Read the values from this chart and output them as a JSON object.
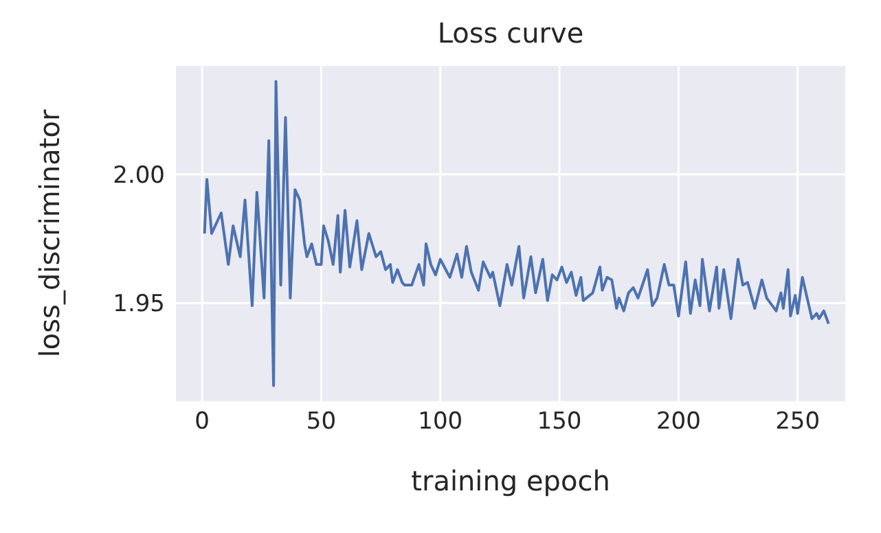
{
  "chart_data": {
    "type": "line",
    "title": "Loss curve",
    "xlabel": "training epoch",
    "ylabel": "loss_discriminator",
    "xlim": [
      -11,
      270
    ],
    "ylim": [
      1.912,
      2.042
    ],
    "xticks": [
      0,
      50,
      100,
      150,
      200,
      250
    ],
    "yticks": [
      {
        "value": 1.95,
        "label": "1.95"
      },
      {
        "value": 2.0,
        "label": "2.00"
      }
    ],
    "grid": true,
    "marker": "none",
    "line_style": "solid",
    "series": [
      {
        "color": "#4c72b0",
        "x": [
          1,
          2,
          4,
          8,
          11,
          13,
          16,
          18,
          21,
          23,
          26,
          28,
          30,
          31,
          33,
          35,
          37,
          39,
          41,
          43,
          44,
          46,
          48,
          50,
          51,
          53,
          55,
          57,
          58,
          60,
          62,
          65,
          67,
          70,
          73,
          75,
          77,
          79,
          80,
          82,
          84,
          85,
          88,
          91,
          93,
          94,
          96,
          98,
          100,
          104,
          107,
          109,
          111,
          113,
          116,
          118,
          121,
          122,
          125,
          128,
          130,
          133,
          135,
          138,
          140,
          143,
          145,
          147,
          149,
          151,
          153,
          155,
          157,
          159,
          160,
          164,
          167,
          168,
          170,
          172,
          174,
          175,
          177,
          179,
          181,
          183,
          187,
          189,
          191,
          194,
          196,
          198,
          200,
          203,
          205,
          207,
          209,
          210,
          213,
          216,
          217,
          219,
          222,
          225,
          227,
          229,
          232,
          235,
          237,
          241,
          243,
          244,
          246,
          247,
          249,
          250,
          252,
          254,
          256,
          258,
          259,
          261,
          263
        ],
        "values": [
          1.977,
          1.998,
          1.977,
          1.985,
          1.965,
          1.98,
          1.968,
          1.99,
          1.949,
          1.993,
          1.952,
          2.013,
          1.918,
          2.036,
          1.957,
          2.022,
          1.952,
          1.994,
          1.99,
          1.973,
          1.968,
          1.973,
          1.965,
          1.965,
          1.98,
          1.974,
          1.965,
          1.984,
          1.962,
          1.986,
          1.964,
          1.982,
          1.963,
          1.977,
          1.968,
          1.97,
          1.963,
          1.965,
          1.958,
          1.963,
          1.958,
          1.957,
          1.957,
          1.965,
          1.957,
          1.973,
          1.965,
          1.961,
          1.967,
          1.96,
          1.969,
          1.96,
          1.972,
          1.962,
          1.955,
          1.966,
          1.96,
          1.962,
          1.949,
          1.965,
          1.957,
          1.972,
          1.952,
          1.968,
          1.954,
          1.967,
          1.951,
          1.961,
          1.959,
          1.964,
          1.958,
          1.962,
          1.953,
          1.96,
          1.951,
          1.954,
          1.964,
          1.955,
          1.96,
          1.959,
          1.948,
          1.952,
          1.947,
          1.954,
          1.956,
          1.952,
          1.963,
          1.949,
          1.952,
          1.965,
          1.957,
          1.957,
          1.945,
          1.966,
          1.946,
          1.959,
          1.949,
          1.967,
          1.947,
          1.964,
          1.948,
          1.963,
          1.944,
          1.967,
          1.957,
          1.958,
          1.948,
          1.959,
          1.952,
          1.947,
          1.954,
          1.948,
          1.963,
          1.945,
          1.953,
          1.946,
          1.96,
          1.952,
          1.944,
          1.946,
          1.944,
          1.947,
          1.942
        ]
      }
    ]
  }
}
